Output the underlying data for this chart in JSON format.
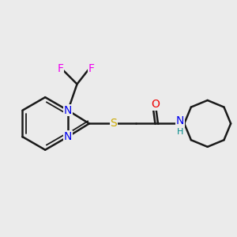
{
  "background_color": "#ebebeb",
  "bond_color": "#1a1a1a",
  "bond_width": 1.8,
  "colors": {
    "N": "#0000ee",
    "O": "#ee0000",
    "S": "#ccaa00",
    "F": "#ee00ee",
    "H": "#008888",
    "C": "#1a1a1a"
  },
  "font_size": 10
}
